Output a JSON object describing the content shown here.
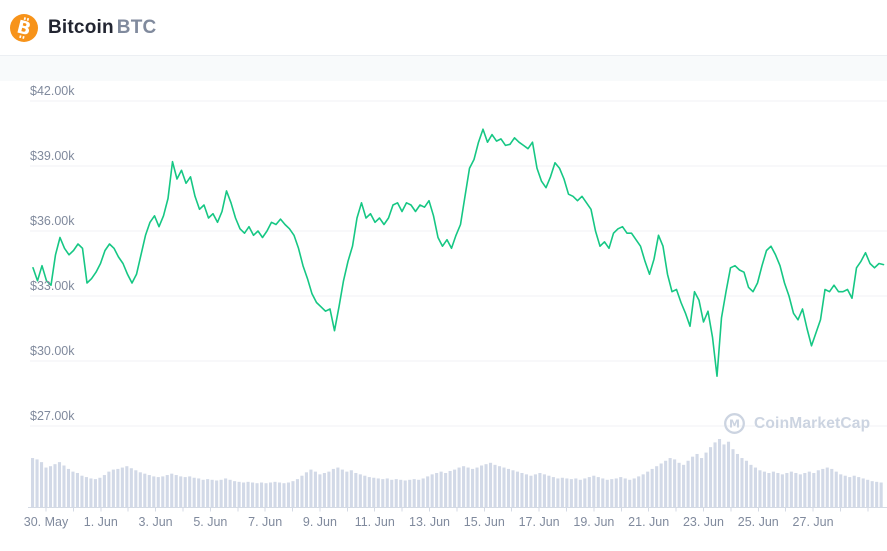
{
  "header": {
    "coin_name": "Bitcoin",
    "coin_symbol": "BTC"
  },
  "watermark": {
    "text": "CoinMarketCap"
  },
  "chart_data": {
    "type": "line",
    "title": "Bitcoin BTC",
    "legend": "none",
    "grid": "horizontal",
    "y_axis": {
      "top_value_k": 42,
      "bottom_value_k": 27,
      "step_k": 3,
      "unit": "USD thousands"
    },
    "y_ticks": [
      {
        "label": "$42.00k",
        "value_k": 42
      },
      {
        "label": "$39.00k",
        "value_k": 39
      },
      {
        "label": "$36.00k",
        "value_k": 36
      },
      {
        "label": "$33.00k",
        "value_k": 33
      },
      {
        "label": "$30.00k",
        "value_k": 30
      },
      {
        "label": "$27.00k",
        "value_k": 27
      }
    ],
    "x_labels": [
      "30. May",
      "1. Jun",
      "3. Jun",
      "5. Jun",
      "7. Jun",
      "9. Jun",
      "11. Jun",
      "13. Jun",
      "15. Jun",
      "17. Jun",
      "19. Jun",
      "21. Jun",
      "23. Jun",
      "25. Jun",
      "27. Jun"
    ],
    "price_usd_k": [
      34.3,
      33.7,
      34.4,
      33.7,
      33.5,
      34.9,
      35.7,
      35.2,
      34.9,
      35.1,
      35.4,
      35.2,
      33.6,
      33.8,
      34.1,
      34.5,
      35.1,
      35.4,
      35.2,
      34.8,
      34.5,
      34.0,
      33.6,
      34.0,
      34.9,
      35.8,
      36.4,
      36.7,
      36.2,
      36.7,
      37.5,
      39.2,
      38.4,
      38.8,
      38.2,
      38.5,
      37.6,
      37.0,
      37.2,
      36.6,
      36.8,
      36.4,
      36.9,
      37.85,
      37.3,
      36.6,
      36.1,
      35.9,
      36.2,
      35.8,
      36.0,
      35.7,
      36.0,
      36.4,
      36.3,
      36.55,
      36.3,
      36.1,
      35.8,
      35.2,
      34.4,
      33.8,
      33.1,
      32.7,
      32.5,
      32.3,
      32.4,
      31.4,
      32.5,
      33.7,
      34.6,
      35.3,
      36.6,
      37.3,
      36.6,
      36.8,
      36.4,
      36.6,
      36.3,
      36.6,
      37.2,
      37.3,
      36.9,
      37.3,
      37.2,
      36.9,
      37.2,
      37.1,
      37.4,
      36.7,
      35.7,
      35.3,
      35.6,
      35.2,
      35.8,
      36.3,
      37.6,
      38.9,
      39.3,
      40.1,
      40.7,
      40.1,
      40.45,
      40.15,
      40.25,
      39.95,
      40.0,
      40.3,
      40.1,
      39.95,
      39.8,
      40.1,
      38.9,
      38.3,
      38.0,
      38.5,
      39.15,
      38.9,
      38.4,
      37.7,
      37.6,
      37.4,
      37.6,
      37.3,
      37.0,
      36.0,
      35.3,
      35.5,
      35.2,
      35.9,
      36.1,
      36.2,
      35.9,
      35.9,
      35.6,
      35.3,
      34.6,
      34.0,
      34.7,
      35.8,
      35.3,
      34.0,
      33.2,
      33.3,
      32.7,
      32.2,
      31.6,
      33.2,
      32.8,
      31.8,
      32.3,
      31.1,
      29.3,
      32.0,
      33.2,
      34.3,
      34.4,
      34.2,
      34.1,
      33.4,
      33.2,
      33.6,
      34.4,
      35.1,
      35.3,
      34.9,
      34.4,
      33.6,
      33.0,
      32.2,
      31.9,
      32.4,
      31.5,
      30.7,
      31.3,
      31.9,
      33.3,
      33.2,
      33.5,
      33.2,
      33.2,
      33.3,
      32.9,
      34.3,
      34.6,
      35.0,
      34.5,
      34.3,
      34.5,
      34.45
    ],
    "volume_relative": [
      0.72,
      0.7,
      0.66,
      0.58,
      0.6,
      0.63,
      0.66,
      0.61,
      0.56,
      0.52,
      0.5,
      0.46,
      0.44,
      0.42,
      0.41,
      0.43,
      0.47,
      0.52,
      0.55,
      0.56,
      0.58,
      0.6,
      0.57,
      0.54,
      0.51,
      0.49,
      0.47,
      0.45,
      0.44,
      0.45,
      0.47,
      0.49,
      0.47,
      0.45,
      0.44,
      0.45,
      0.43,
      0.42,
      0.4,
      0.41,
      0.4,
      0.39,
      0.4,
      0.42,
      0.4,
      0.38,
      0.37,
      0.36,
      0.37,
      0.36,
      0.35,
      0.36,
      0.35,
      0.36,
      0.37,
      0.36,
      0.35,
      0.36,
      0.38,
      0.41,
      0.46,
      0.51,
      0.55,
      0.52,
      0.48,
      0.5,
      0.52,
      0.56,
      0.58,
      0.55,
      0.52,
      0.54,
      0.5,
      0.48,
      0.46,
      0.44,
      0.43,
      0.42,
      0.41,
      0.42,
      0.4,
      0.41,
      0.4,
      0.39,
      0.4,
      0.41,
      0.4,
      0.42,
      0.45,
      0.48,
      0.5,
      0.52,
      0.5,
      0.53,
      0.55,
      0.58,
      0.6,
      0.58,
      0.56,
      0.58,
      0.61,
      0.63,
      0.65,
      0.62,
      0.6,
      0.58,
      0.56,
      0.54,
      0.52,
      0.5,
      0.48,
      0.46,
      0.48,
      0.5,
      0.48,
      0.46,
      0.44,
      0.42,
      0.43,
      0.42,
      0.41,
      0.42,
      0.4,
      0.42,
      0.44,
      0.46,
      0.44,
      0.42,
      0.4,
      0.41,
      0.42,
      0.44,
      0.42,
      0.4,
      0.42,
      0.45,
      0.48,
      0.52,
      0.56,
      0.6,
      0.64,
      0.68,
      0.72,
      0.7,
      0.65,
      0.62,
      0.68,
      0.74,
      0.78,
      0.72,
      0.8,
      0.88,
      0.95,
      1.0,
      0.92,
      0.96,
      0.85,
      0.78,
      0.72,
      0.68,
      0.62,
      0.58,
      0.54,
      0.52,
      0.5,
      0.52,
      0.5,
      0.48,
      0.5,
      0.52,
      0.5,
      0.48,
      0.5,
      0.52,
      0.5,
      0.54,
      0.56,
      0.58,
      0.56,
      0.52,
      0.48,
      0.46,
      0.44,
      0.46,
      0.44,
      0.42,
      0.4,
      0.38,
      0.37,
      0.36
    ],
    "colors": {
      "line": "#16c784",
      "volume": "#d2d9e7",
      "grid": "#f0f2f5",
      "axis": "#d4dae4",
      "label": "#808a9d",
      "brand_orange": "#f7931a"
    }
  }
}
